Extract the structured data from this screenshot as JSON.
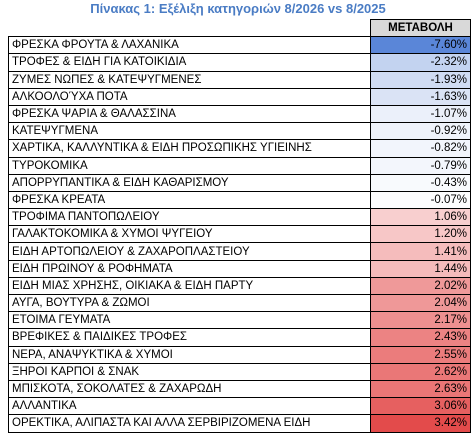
{
  "title": "Πίνακας 1: Εξέλιξη κατηγοριών 8/2026 vs 8/2025",
  "table": {
    "header": "ΜΕΤΑΒΟΛΗ",
    "rows": [
      [
        "ΦΡΕΣΚΑ ΦΡΟΥΤΑ & ΛΑΧΑΝΙΚΑ",
        "-7.60%"
      ],
      [
        "ΤΡΟΦΕΣ & ΕΙΔΗ ΓΙΑ ΚΑΤΟΙΚΙΔΙΑ",
        "-2.32%"
      ],
      [
        "ΖΥΜΕΣ ΝΩΠΕΣ & ΚΑΤΕΨΥΓΜΕΝΕΣ",
        "-1.93%"
      ],
      [
        "ΑΛΚΟΟΛΟΎΧΑ ΠΟΤΑ",
        "-1.63%"
      ],
      [
        "ΦΡΕΣΚΑ ΨΑΡΙΑ & ΘΑΛΑΣΣΙΝΑ",
        "-1.07%"
      ],
      [
        "ΚΑΤΕΨΥΓΜΕΝΑ",
        "-0.92%"
      ],
      [
        "ΧΑΡΤΙΚΑ, ΚΑΛΛΥΝΤΙΚΑ & ΕΙΔΗ ΠΡΟΣΩΠΙΚΗΣ ΥΓΙΕΙΝΗΣ",
        "-0.82%"
      ],
      [
        "ΤΥΡΟΚΟΜΙΚΑ",
        "-0.79%"
      ],
      [
        "ΑΠΟΡΡΥΠΑΝΤΙΚΑ & ΕΙΔΗ ΚΑΘΑΡΙΣΜΟΥ",
        "-0.43%"
      ],
      [
        "ΦΡΕΣΚΑ ΚΡΕΑΤΑ",
        "-0.07%"
      ],
      [
        "ΤΡΟΦΙΜΑ ΠΑΝΤΟΠΩΛΕΙΟΥ",
        "1.06%"
      ],
      [
        "ΓΑΛΑΚΤΟΚΟΜΙΚΑ & ΧΥΜΟΙ ΨΥΓΕΙΟΥ",
        "1.20%"
      ],
      [
        "ΕΙΔΗ ΑΡΤΟΠΩΛΕΙΟΥ & ΖΑΧΑΡΟΠΛΑΣΤΕΙΟΥ",
        "1.41%"
      ],
      [
        "ΕΙΔΗ ΠΡΩΙΝΟΥ & ΡΟΦΗΜΑΤΑ",
        "1.44%"
      ],
      [
        "ΕΙΔΗ ΜΙΑΣ ΧΡΗΣΗΣ, ΟΙΚΙΑΚΑ & ΕΙΔΗ ΠΑΡΤΥ",
        "2.02%"
      ],
      [
        "ΑΥΓΑ, ΒΟΥΤΥΡΑ & ΖΩΜΟΙ",
        "2.04%"
      ],
      [
        "ΕΤΟΙΜΑ ΓΕΥΜΑΤΑ",
        "2.17%"
      ],
      [
        "ΒΡΕΦΙΚΕΣ & ΠΑΙΔΙΚΕΣ ΤΡΟΦΕΣ",
        "2.43%"
      ],
      [
        "ΝΕΡΑ, ΑΝΑΨΥΚΤΙΚΑ & ΧΥΜΟΙ",
        "2.55%"
      ],
      [
        "ΞΗΡΟΙ ΚΑΡΠΟΙ & ΣΝΑΚ",
        "2.62%"
      ],
      [
        "ΜΠΙΣΚΟΤΑ, ΣΟΚΟΛΑΤΕΣ & ΖΑΧΑΡΩΔΗ",
        "2.63%"
      ],
      [
        "ΑΛΛΑΝΤΙΚΑ",
        "3.06%"
      ],
      [
        "ΟΡΕΚΤΙΚΑ, ΑΛΙΠΑΣΤΑ ΚΑΙ ΑΛΛΑ ΣΕΡΒΙΡΙΖΟΜΕΝΑ ΕΙΔΗ",
        "3.42%"
      ]
    ],
    "fills": [
      "#5a86d8",
      "#c3d3f0",
      "#d0dcf3",
      "#dae3f5",
      "#ebf0fa",
      "#eff3fb",
      "#f2f5fc",
      "#f3f6fc",
      "#f8fafd",
      "#fdfdfe",
      "#f8cfcf",
      "#f7c7c7",
      "#f5bcbc",
      "#f5bbbb",
      "#ef9999",
      "#ef9898",
      "#ee9090",
      "#ec8383",
      "#eb7c7c",
      "#ea7777",
      "#ea7676",
      "#e66060",
      "#e34b4b"
    ]
  }
}
